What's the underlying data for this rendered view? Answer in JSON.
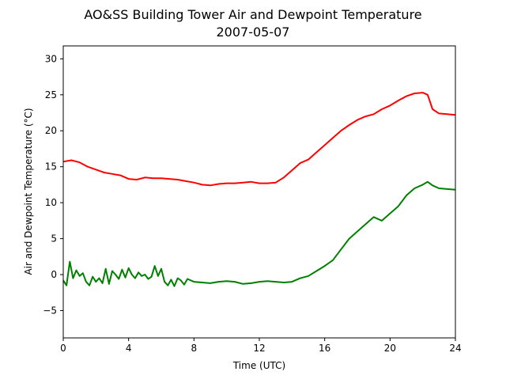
{
  "chart_data": {
    "type": "line",
    "title": "AO&SS Building Tower Air and Dewpoint Temperature",
    "subtitle": "2007-05-07",
    "xlabel": "Time (UTC)",
    "ylabel": "Air and Dewpoint Temperature (°C)",
    "xlim": [
      0,
      24
    ],
    "ylim": [
      -8.8,
      31.8
    ],
    "xticks": [
      0,
      4,
      8,
      12,
      16,
      20,
      24
    ],
    "yticks": [
      -5,
      0,
      5,
      10,
      15,
      20,
      25,
      30
    ],
    "grid": false,
    "series": [
      {
        "color": "#ff0000",
        "x": [
          0,
          0.5,
          1,
          1.5,
          2,
          2.5,
          3,
          3.5,
          4,
          4.5,
          5,
          5.5,
          6,
          6.5,
          7,
          7.5,
          8,
          8.5,
          9,
          9.5,
          10,
          10.5,
          11,
          11.5,
          12,
          12.5,
          13,
          13.5,
          14,
          14.5,
          15,
          15.5,
          16,
          16.5,
          17,
          17.5,
          18,
          18.5,
          19,
          19.5,
          20,
          20.5,
          21,
          21.5,
          22,
          22.3,
          22.6,
          23,
          23.5,
          24
        ],
        "y": [
          15.7,
          15.9,
          15.6,
          15.0,
          14.6,
          14.2,
          14.0,
          13.8,
          13.3,
          13.2,
          13.5,
          13.4,
          13.4,
          13.3,
          13.2,
          13.0,
          12.8,
          12.5,
          12.4,
          12.6,
          12.7,
          12.7,
          12.8,
          12.9,
          12.7,
          12.7,
          12.8,
          13.5,
          14.5,
          15.5,
          16.0,
          17.0,
          18.0,
          19.0,
          20.0,
          20.8,
          21.5,
          22.0,
          22.3,
          23.0,
          23.5,
          24.2,
          24.8,
          25.2,
          25.3,
          25.0,
          23.0,
          22.4,
          22.3,
          22.2
        ]
      },
      {
        "color": "#008000",
        "x": [
          0,
          0.2,
          0.4,
          0.6,
          0.8,
          1,
          1.2,
          1.4,
          1.6,
          1.8,
          2,
          2.2,
          2.4,
          2.6,
          2.8,
          3,
          3.2,
          3.4,
          3.6,
          3.8,
          4,
          4.2,
          4.4,
          4.6,
          4.8,
          5,
          5.2,
          5.4,
          5.6,
          5.8,
          6,
          6.2,
          6.4,
          6.6,
          6.8,
          7,
          7.2,
          7.4,
          7.6,
          8,
          8.5,
          9,
          9.5,
          10,
          10.5,
          11,
          11.5,
          12,
          12.5,
          13,
          13.5,
          14,
          14.5,
          15,
          15.5,
          16,
          16.5,
          17,
          17.5,
          18,
          18.5,
          19,
          19.5,
          20,
          20.5,
          21,
          21.5,
          22,
          22.3,
          22.6,
          23,
          23.5,
          24
        ],
        "y": [
          -0.8,
          -1.5,
          1.8,
          -0.5,
          0.6,
          -0.2,
          0.2,
          -1.0,
          -1.5,
          -0.3,
          -1.0,
          -0.5,
          -1.2,
          0.8,
          -1.3,
          0.5,
          0.0,
          -0.6,
          0.7,
          -0.4,
          0.9,
          0.0,
          -0.5,
          0.3,
          -0.2,
          0.0,
          -0.6,
          -0.3,
          1.2,
          -0.2,
          0.8,
          -1.0,
          -1.5,
          -0.7,
          -1.6,
          -0.5,
          -0.8,
          -1.4,
          -0.6,
          -1.0,
          -1.1,
          -1.2,
          -1.0,
          -0.9,
          -1.0,
          -1.3,
          -1.2,
          -1.0,
          -0.9,
          -1.0,
          -1.1,
          -1.0,
          -0.5,
          -0.2,
          0.5,
          1.2,
          2.0,
          3.5,
          5.0,
          6.0,
          7.0,
          8.0,
          7.5,
          8.5,
          9.5,
          11.0,
          12.0,
          12.5,
          12.9,
          12.4,
          12.0,
          11.9,
          11.8
        ]
      }
    ]
  }
}
